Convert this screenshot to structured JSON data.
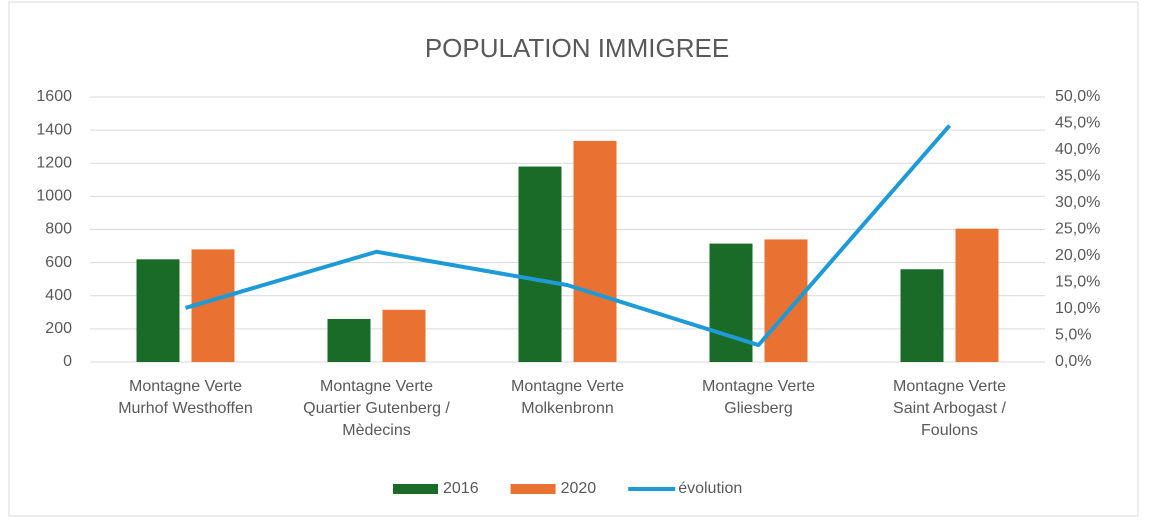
{
  "chart_data": {
    "type": "bar_line",
    "title": "POPULATION IMMIGREE",
    "categories": [
      [
        "Montagne Verte",
        "Murhof Westhoffen"
      ],
      [
        "Montagne Verte",
        "Quartier Gutenberg /",
        "Mèdecins"
      ],
      [
        "Montagne Verte",
        "Molkenbronn"
      ],
      [
        "Montagne Verte",
        "Gliesberg"
      ],
      [
        "Montagne Verte",
        "Saint Arbogast /",
        "Foulons"
      ]
    ],
    "series": [
      {
        "name": "2016",
        "color": "#1a6b27",
        "values": [
          620,
          260,
          1180,
          715,
          560
        ]
      },
      {
        "name": "2020",
        "color": "#e97132",
        "values": [
          680,
          315,
          1335,
          740,
          805
        ]
      },
      {
        "name": "évolution",
        "color": "#1e9bd7",
        "axis": "y2",
        "values": [
          10.2,
          20.8,
          14.5,
          3.2,
          44.6
        ]
      }
    ],
    "ylim": [
      0,
      1600
    ],
    "yticks": [
      0,
      200,
      400,
      600,
      800,
      1000,
      1200,
      1400,
      1600
    ],
    "y2lim": [
      0,
      50
    ],
    "y2ticks": [
      {
        "value": 0,
        "label": "0,0%"
      },
      {
        "value": 5,
        "label": "5,0%"
      },
      {
        "value": 10,
        "label": "10,0%"
      },
      {
        "value": 15,
        "label": "15,0%"
      },
      {
        "value": 20,
        "label": "20,0%"
      },
      {
        "value": 25,
        "label": "25,0%"
      },
      {
        "value": 30,
        "label": "30,0%"
      },
      {
        "value": 35,
        "label": "35,0%"
      },
      {
        "value": 40,
        "label": "40,0%"
      },
      {
        "value": 45,
        "label": "45,0%"
      },
      {
        "value": 50,
        "label": "50,0%"
      }
    ],
    "grid": true,
    "legend": "bottom"
  }
}
